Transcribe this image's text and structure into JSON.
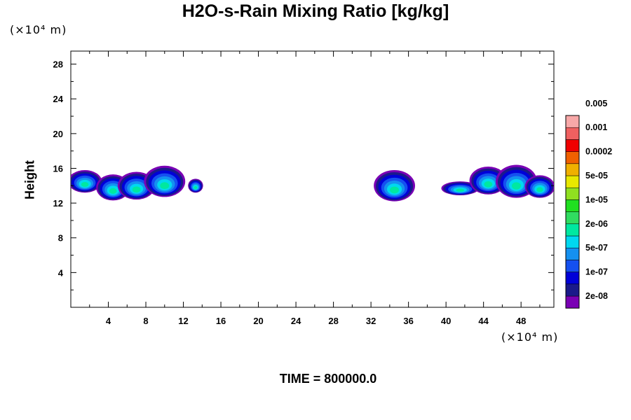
{
  "chart_data": {
    "type": "heatmap",
    "title": "H2O-s-Rain Mixing Ratio [kg/kg]",
    "ylabel": "Height",
    "xunit": "(×10⁴ m)",
    "yunit": "(×10⁴ m)",
    "time_label": "TIME = 800000.0",
    "xlim": [
      0,
      51.5
    ],
    "ylim": [
      0,
      29.5
    ],
    "x_ticks": [
      4,
      8,
      12,
      16,
      20,
      24,
      28,
      32,
      36,
      40,
      44,
      48
    ],
    "y_ticks": [
      4,
      8,
      12,
      16,
      20,
      24,
      28
    ],
    "colorbar": {
      "colors": [
        "#7a00b4",
        "#1a1a8a",
        "#0000d8",
        "#1450f0",
        "#1490f0",
        "#00d8f0",
        "#00e8a0",
        "#30dc60",
        "#20e020",
        "#90e020",
        "#e8e800",
        "#f0b000",
        "#f06000",
        "#f00000",
        "#f06060",
        "#f8a8a8"
      ],
      "labels": [
        "2e-08",
        "1e-07",
        "5e-07",
        "2e-06",
        "1e-05",
        "5e-05",
        "0.0002",
        "0.001",
        "0.005"
      ]
    },
    "cloud_blobs": [
      {
        "x": 1.5,
        "y": 14.5,
        "rx": 1.8,
        "ry": 1.3
      },
      {
        "x": 4.5,
        "y": 13.8,
        "rx": 1.8,
        "ry": 1.5
      },
      {
        "x": 7.0,
        "y": 14.0,
        "rx": 2.0,
        "ry": 1.6
      },
      {
        "x": 10.0,
        "y": 14.5,
        "rx": 2.2,
        "ry": 1.8
      },
      {
        "x": 13.3,
        "y": 14.0,
        "rx": 0.8,
        "ry": 0.8
      },
      {
        "x": 34.5,
        "y": 14.0,
        "rx": 2.2,
        "ry": 1.8
      },
      {
        "x": 41.5,
        "y": 13.7,
        "rx": 2.0,
        "ry": 0.8
      },
      {
        "x": 44.5,
        "y": 14.6,
        "rx": 2.0,
        "ry": 1.6
      },
      {
        "x": 47.5,
        "y": 14.5,
        "rx": 2.2,
        "ry": 1.9
      },
      {
        "x": 50.0,
        "y": 13.9,
        "rx": 1.6,
        "ry": 1.3
      }
    ]
  }
}
